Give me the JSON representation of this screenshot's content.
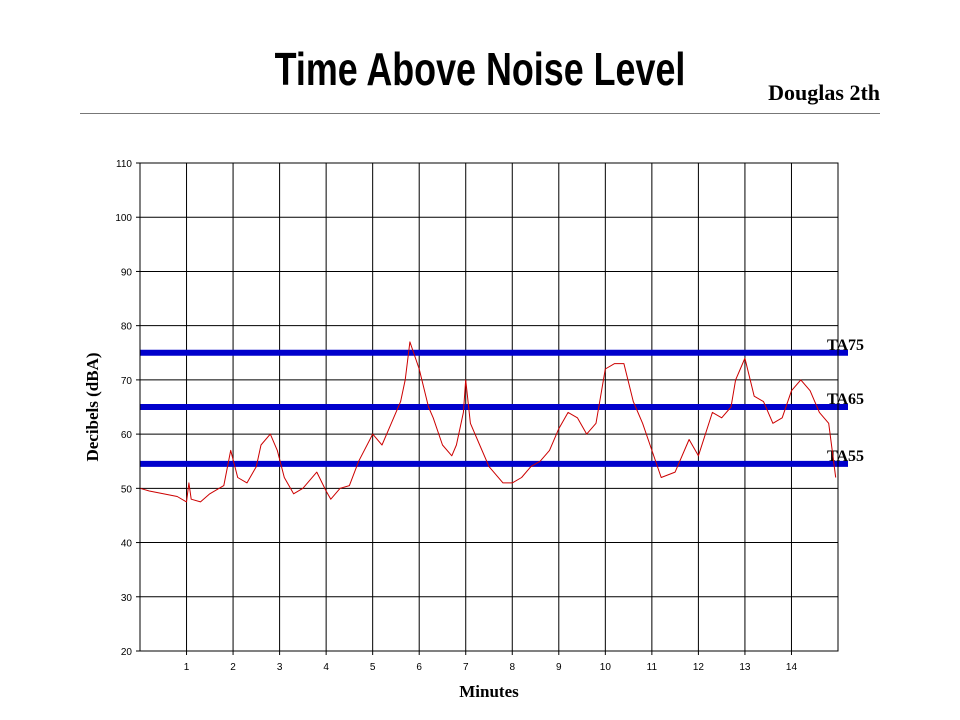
{
  "header": {
    "title": "Time Above Noise Level",
    "subtitle": "Douglas 2th"
  },
  "chart_data": {
    "type": "line",
    "title": "Time Above Noise Level",
    "xlabel": "Minutes",
    "ylabel": "Decibels (dBA)",
    "xlim": [
      0,
      15
    ],
    "ylim": [
      20,
      110
    ],
    "x_ticks": [
      "1",
      "2",
      "3",
      "4",
      "5",
      "6",
      "7",
      "8",
      "9",
      "10",
      "11",
      "12",
      "13",
      "14"
    ],
    "y_ticks": [
      "20",
      "30",
      "40",
      "50",
      "60",
      "70",
      "80",
      "90",
      "100",
      "110"
    ],
    "grid": true,
    "colors": {
      "series": "#cc0000",
      "threshold": "#0000cc"
    },
    "thresholds": [
      {
        "label": "TA75",
        "value": 75
      },
      {
        "label": "TA65",
        "value": 65
      },
      {
        "label": "TA55",
        "value": 54.5
      }
    ],
    "series": [
      {
        "x": [
          0,
          0.2,
          0.5,
          0.8,
          1.0,
          1.05,
          1.1,
          1.3,
          1.5,
          1.8,
          1.95,
          2.1,
          2.3,
          2.5,
          2.6,
          2.8,
          2.95,
          3.1,
          3.3,
          3.5,
          3.6,
          3.8,
          4.0,
          4.1,
          4.3,
          4.5,
          4.7,
          5.0,
          5.2,
          5.4,
          5.6,
          5.7,
          5.8,
          6.0,
          6.2,
          6.3,
          6.5,
          6.7,
          6.8,
          6.95,
          7.0,
          7.1,
          7.3,
          7.5,
          7.8,
          8.0,
          8.2,
          8.4,
          8.6,
          8.8,
          9.0,
          9.2,
          9.4,
          9.6,
          9.8,
          10.0,
          10.2,
          10.4,
          10.6,
          10.8,
          11.0,
          11.2,
          11.5,
          11.8,
          12.0,
          12.3,
          12.5,
          12.7,
          12.8,
          12.9,
          13.0,
          13.2,
          13.4,
          13.6,
          13.8,
          14.0,
          14.2,
          14.4,
          14.6,
          14.8,
          14.95
        ],
        "y": [
          50,
          49.5,
          49,
          48.5,
          47.5,
          51,
          48,
          47.5,
          49,
          50.5,
          57,
          52,
          51,
          54,
          58,
          60,
          57,
          52,
          49,
          50,
          51,
          53,
          49.5,
          48,
          50,
          50.5,
          55,
          60,
          58,
          62,
          66,
          70,
          77,
          72,
          65,
          63,
          58,
          56,
          58,
          64,
          70,
          62,
          58,
          54,
          51,
          51,
          52,
          54,
          55,
          57,
          61,
          64,
          63,
          60,
          62,
          72,
          73,
          73,
          66,
          62,
          57,
          52,
          53,
          59,
          56,
          64,
          63,
          65,
          70,
          72,
          74,
          67,
          66,
          62,
          63,
          68,
          70,
          68,
          64,
          62,
          52
        ]
      }
    ]
  }
}
